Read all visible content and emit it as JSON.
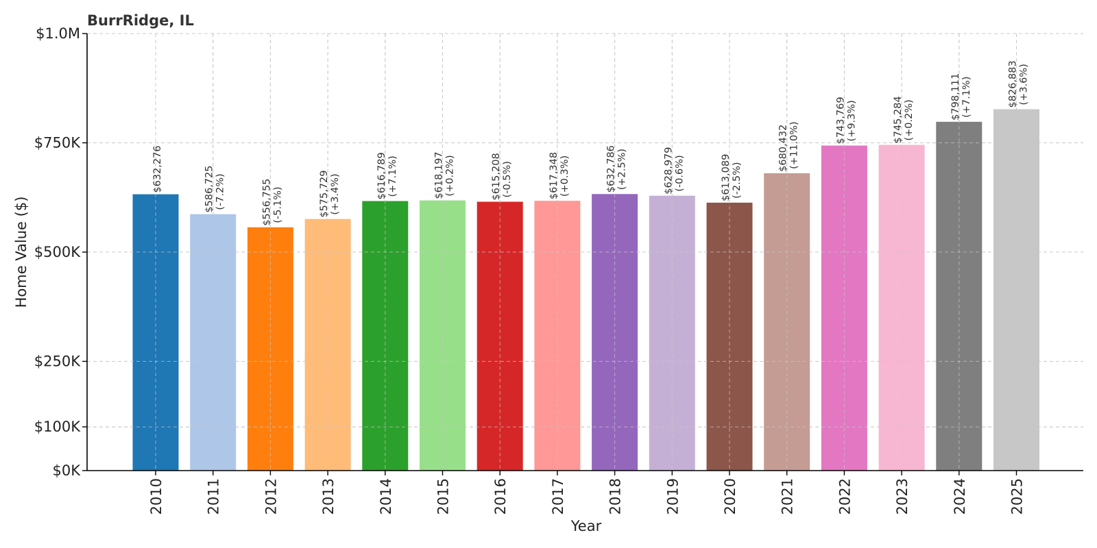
{
  "chart_data": {
    "type": "bar",
    "title": "BurrRidge, IL",
    "xlabel": "Year",
    "ylabel": "Home Value ($)",
    "ylim": [
      0,
      1000000
    ],
    "yticks": [
      {
        "value": 0,
        "label": "$0K"
      },
      {
        "value": 100000,
        "label": "$100K"
      },
      {
        "value": 250000,
        "label": "$250K"
      },
      {
        "value": 500000,
        "label": "$500K"
      },
      {
        "value": 750000,
        "label": "$750K"
      },
      {
        "value": 1000000,
        "label": "$1.0M"
      }
    ],
    "grid": true,
    "categories": [
      "2010",
      "2011",
      "2012",
      "2013",
      "2014",
      "2015",
      "2016",
      "2017",
      "2018",
      "2019",
      "2020",
      "2021",
      "2022",
      "2023",
      "2024",
      "2025"
    ],
    "values": [
      632276,
      586725,
      556755,
      575729,
      616789,
      618197,
      615208,
      617348,
      632786,
      628979,
      613089,
      680432,
      743769,
      745284,
      798111,
      826883
    ],
    "value_labels": [
      "$632,276",
      "$586,725",
      "$556,755",
      "$575,729",
      "$616,789",
      "$618,197",
      "$615,208",
      "$617,348",
      "$632,786",
      "$628,979",
      "$613,089",
      "$680,432",
      "$743,769",
      "$745,284",
      "$798,111",
      "$826,883"
    ],
    "change_labels": [
      "",
      "(-7.2%)",
      "(-5.1%)",
      "(+3.4%)",
      "(+7.1%)",
      "(+0.2%)",
      "(-0.5%)",
      "(+0.3%)",
      "(+2.5%)",
      "(-0.6%)",
      "(-2.5%)",
      "(+11.0%)",
      "(+9.3%)",
      "(+0.2%)",
      "(+7.1%)",
      "(+3.6%)"
    ],
    "colors": [
      "#1f77b4",
      "#aec7e8",
      "#ff7f0e",
      "#ffbb78",
      "#2ca02c",
      "#98df8a",
      "#d62728",
      "#ff9896",
      "#9467bd",
      "#c5b0d5",
      "#8c564b",
      "#c49c94",
      "#e377c2",
      "#f7b6d2",
      "#7f7f7f",
      "#c7c7c7"
    ]
  }
}
